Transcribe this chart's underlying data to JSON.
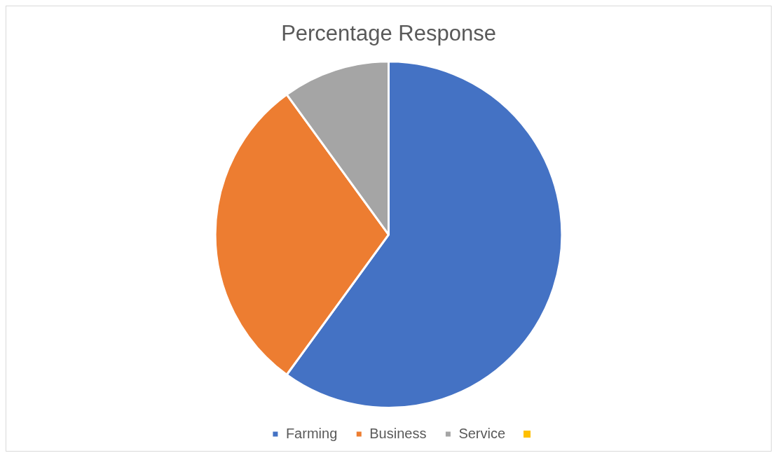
{
  "chart_data": {
    "type": "pie",
    "title": "Percentage Response",
    "categories": [
      "Farming",
      "Business",
      "Service",
      null
    ],
    "values": [
      60,
      30,
      10,
      0
    ],
    "colors": [
      "#4472c4",
      "#ed7d31",
      "#a5a5a5",
      "#ffc000"
    ],
    "legend": "bottom"
  }
}
